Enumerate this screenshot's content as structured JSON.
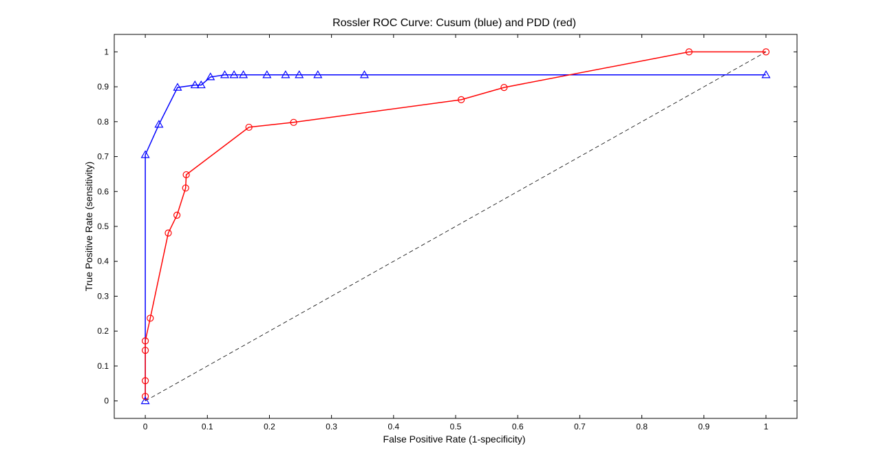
{
  "chart_data": {
    "type": "line",
    "title": "Rossler ROC Curve: Cusum (blue) and PDD (red)",
    "xlabel": "False Positive Rate (1-specificity)",
    "ylabel": "True Positive Rate (sensitivity)",
    "xlim": [
      -0.05,
      1.05
    ],
    "ylim": [
      -0.05,
      1.05
    ],
    "xticks": [
      0,
      0.1,
      0.2,
      0.3,
      0.4,
      0.5,
      0.6,
      0.7,
      0.8,
      0.9,
      1
    ],
    "xtick_labels": [
      "0",
      "0.1",
      "0.2",
      "0.3",
      "0.4",
      "0.5",
      "0.6",
      "0.7",
      "0.8",
      "0.9",
      "1"
    ],
    "yticks": [
      0,
      0.1,
      0.2,
      0.3,
      0.4,
      0.5,
      0.6,
      0.7,
      0.8,
      0.9,
      1
    ],
    "ytick_labels": [
      "0",
      "0.1",
      "0.2",
      "0.3",
      "0.4",
      "0.5",
      "0.6",
      "0.7",
      "0.8",
      "0.9",
      "1"
    ],
    "grid": false,
    "series": [
      {
        "color": "#0000ff",
        "marker": "triangle",
        "x": [
          0,
          0,
          0.022,
          0.052,
          0.08,
          0.09,
          0.105,
          0.128,
          0.143,
          0.158,
          0.196,
          0.226,
          0.248,
          0.278,
          0.353,
          1.0
        ],
        "y": [
          0,
          0.705,
          0.792,
          0.898,
          0.905,
          0.905,
          0.928,
          0.934,
          0.934,
          0.934,
          0.934,
          0.934,
          0.934,
          0.934,
          0.934,
          0.934
        ]
      },
      {
        "color": "#ff0000",
        "marker": "circle",
        "x": [
          0,
          0,
          0,
          0,
          0.008,
          0.037,
          0.051,
          0.065,
          0.066,
          0.167,
          0.239,
          0.509,
          0.578,
          0.876,
          1.0
        ],
        "y": [
          0.013,
          0.058,
          0.145,
          0.172,
          0.237,
          0.481,
          0.532,
          0.61,
          0.648,
          0.784,
          0.798,
          0.863,
          0.898,
          1.0,
          1.0
        ]
      },
      {
        "color": "#000000",
        "marker": "none",
        "dash": "dashed",
        "x": [
          0,
          1
        ],
        "y": [
          0,
          1
        ]
      }
    ]
  }
}
